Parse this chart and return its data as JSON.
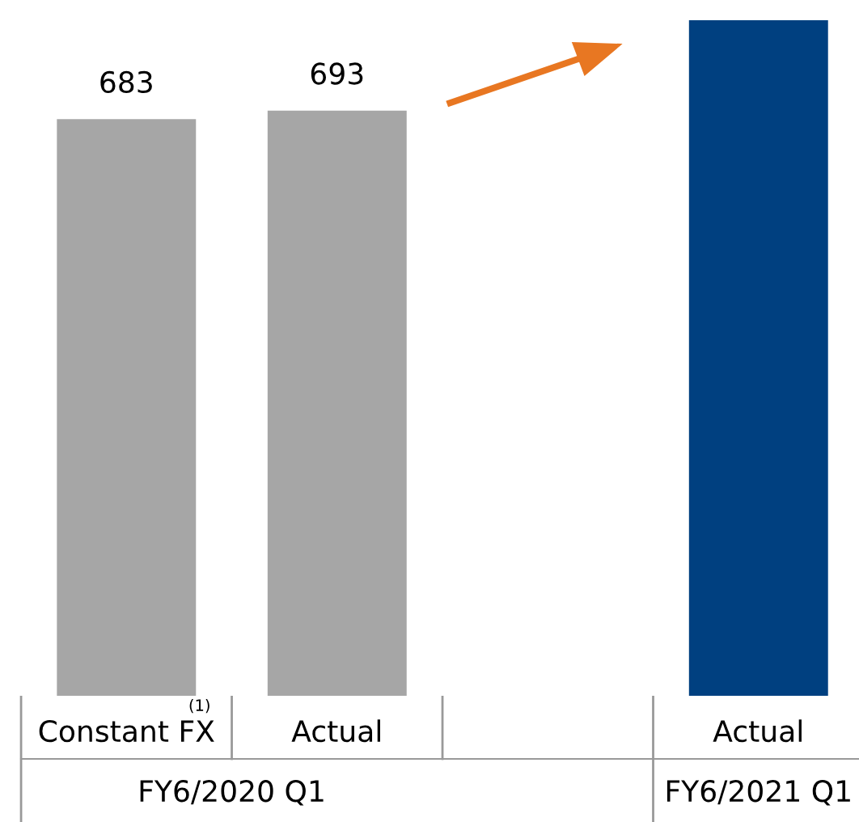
{
  "chart_data": {
    "type": "bar",
    "categories": [
      "Constant FX",
      "Actual",
      null,
      "Actual"
    ],
    "values": [
      683,
      693,
      null,
      800
    ],
    "colors": [
      "#a6a6a6",
      "#a6a6a6",
      "#a6a6a6",
      "#004080"
    ],
    "value_labels": [
      "683",
      "693",
      null,
      null
    ],
    "annotations": [
      "(1)",
      "FY6/2020 Q1",
      "FY6/2021 Q1"
    ]
  }
}
